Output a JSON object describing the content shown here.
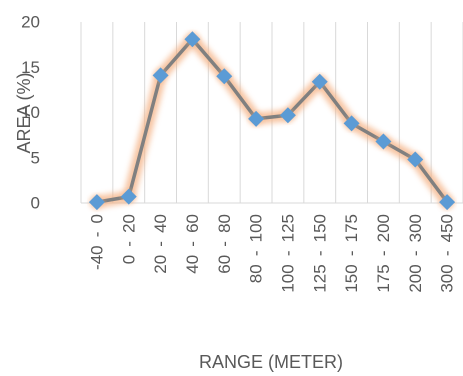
{
  "chart_data": {
    "type": "line",
    "title": "",
    "xlabel": "RANGE (METER)",
    "ylabel": "AREA (%)",
    "ylim": [
      0,
      20
    ],
    "yticks": [
      0,
      5,
      10,
      15,
      20
    ],
    "grid": "vertical",
    "legend": "none",
    "categories": [
      "-40 - 0",
      "0 - 20",
      "20 - 40",
      "40 - 60",
      "60 - 80",
      "80 - 100",
      "100 - 125",
      "125 - 150",
      "150 - 175",
      "175 - 200",
      "200 - 300",
      "300 - 450"
    ],
    "values": [
      0.1,
      0.7,
      14.1,
      18.1,
      14.0,
      9.3,
      9.7,
      13.4,
      8.8,
      6.8,
      4.8,
      0.1
    ],
    "colors": {
      "line": "#808080",
      "glow": "#f4b183",
      "marker": "#5b9bd5",
      "text": "#595959",
      "grid": "#d9d9d9"
    }
  }
}
